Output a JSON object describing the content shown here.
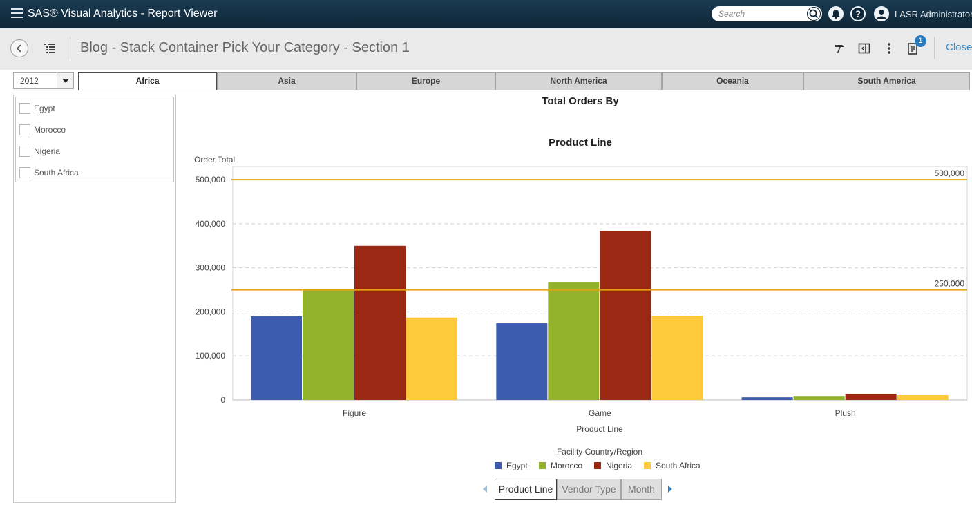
{
  "app": {
    "title": "SAS® Visual Analytics - Report Viewer",
    "search_placeholder": "Search",
    "user_name": "LASR Administrator"
  },
  "toolbar": {
    "report_title": "Blog - Stack Container Pick Your Category - Section 1",
    "notification_count": "1",
    "close_label": "Close"
  },
  "filters": {
    "year": "2012",
    "regions": [
      "Africa",
      "Asia",
      "Europe",
      "North America",
      "Oceania",
      "South America"
    ],
    "active_region": "Africa",
    "countries": [
      "Egypt",
      "Morocco",
      "Nigeria",
      "South Africa"
    ]
  },
  "chart_data": {
    "type": "bar",
    "title_line1": "Total Orders By",
    "title_line2": "Product Line",
    "ylabel": "Order Total",
    "xlabel": "Product Line",
    "ylim": [
      0,
      530000
    ],
    "yticks": [
      0,
      100000,
      200000,
      300000,
      400000,
      500000
    ],
    "ytick_labels": [
      "0",
      "100,000",
      "200,000",
      "300,000",
      "400,000",
      "500,000"
    ],
    "categories": [
      "Figure",
      "Game",
      "Plush"
    ],
    "series": [
      {
        "name": "Egypt",
        "color": "#3d5baf",
        "values": [
          190000,
          174000,
          6000
        ]
      },
      {
        "name": "Morocco",
        "color": "#92b22b",
        "values": [
          252000,
          268000,
          9000
        ]
      },
      {
        "name": "Nigeria",
        "color": "#9b2812",
        "values": [
          350000,
          384000,
          14000
        ]
      },
      {
        "name": "South Africa",
        "color": "#fec93a",
        "values": [
          187000,
          191000,
          11000
        ]
      }
    ],
    "reference_lines": [
      {
        "value": 500000,
        "label": "500,000",
        "color": "#e3a514"
      },
      {
        "value": 250000,
        "label": "250,000",
        "color": "#e3a514"
      }
    ],
    "legend_title": "Facility Country/Region",
    "grid": true
  },
  "category_buttons": {
    "items": [
      "Product Line",
      "Vendor Type",
      "Month"
    ],
    "active": "Product Line"
  }
}
